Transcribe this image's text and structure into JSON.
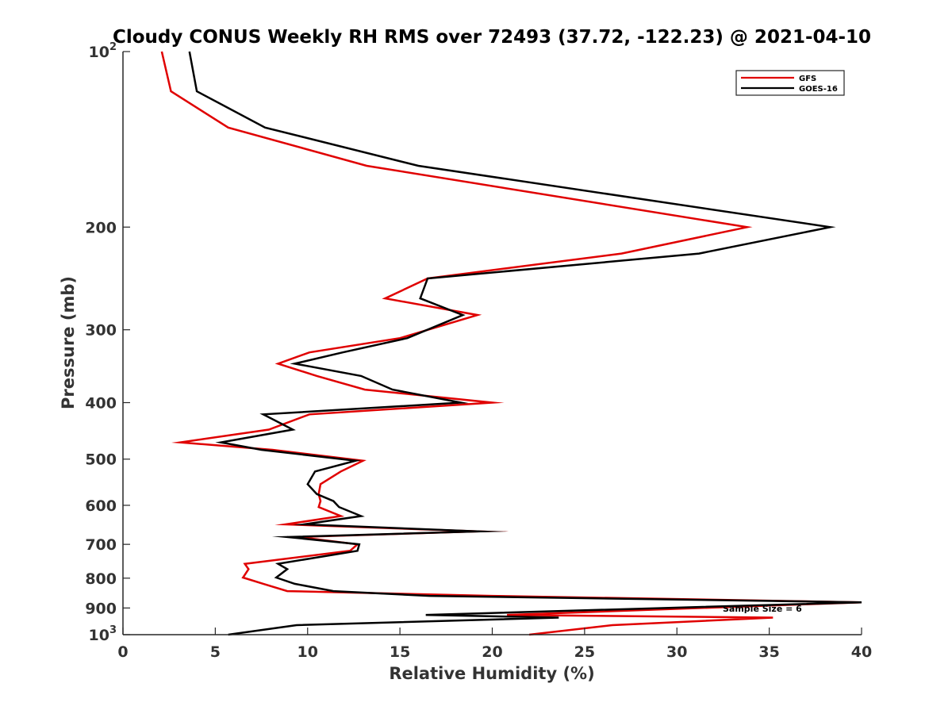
{
  "chart_data": {
    "type": "line",
    "title": "Cloudy CONUS Weekly RH RMS over 72493 (37.72, -122.23) @ 2021-04-10",
    "xlabel": "Relative Humidity (%)",
    "ylabel": "Pressure (mb)",
    "xlim": [
      0,
      40
    ],
    "ylim": [
      100,
      1000
    ],
    "y_scale": "log",
    "y_reversed": true,
    "x_ticks": [
      0,
      5,
      10,
      15,
      20,
      25,
      30,
      35,
      40
    ],
    "y_ticks": [
      {
        "value": 100,
        "label": "10",
        "sup": "2"
      },
      {
        "value": 200,
        "label": "200",
        "sup": ""
      },
      {
        "value": 300,
        "label": "300",
        "sup": ""
      },
      {
        "value": 400,
        "label": "400",
        "sup": ""
      },
      {
        "value": 500,
        "label": "500",
        "sup": ""
      },
      {
        "value": 600,
        "label": "600",
        "sup": ""
      },
      {
        "value": 700,
        "label": "700",
        "sup": ""
      },
      {
        "value": 800,
        "label": "800",
        "sup": ""
      },
      {
        "value": 900,
        "label": "900",
        "sup": ""
      },
      {
        "value": 1000,
        "label": "10",
        "sup": "3"
      }
    ],
    "grid": false,
    "legend_position": "top-right",
    "annotation": "Sample Size = 6",
    "series": [
      {
        "name": "GFS",
        "color": "#e00000",
        "points": [
          [
            2.1,
            100
          ],
          [
            2.6,
            117
          ],
          [
            5.7,
            135
          ],
          [
            13.2,
            157
          ],
          [
            33.8,
            200
          ],
          [
            27.0,
            222
          ],
          [
            16.5,
            245
          ],
          [
            14.2,
            265
          ],
          [
            19.2,
            283
          ],
          [
            15.0,
            310
          ],
          [
            10.1,
            328
          ],
          [
            8.4,
            343
          ],
          [
            10.5,
            360
          ],
          [
            13.1,
            380
          ],
          [
            20.0,
            400
          ],
          [
            10.1,
            419
          ],
          [
            7.9,
            445
          ],
          [
            3.1,
            468
          ],
          [
            8.1,
            482
          ],
          [
            13.0,
            503
          ],
          [
            11.8,
            525
          ],
          [
            10.7,
            552
          ],
          [
            10.6,
            574
          ],
          [
            10.7,
            590
          ],
          [
            10.6,
            604
          ],
          [
            11.8,
            626
          ],
          [
            8.8,
            647
          ],
          [
            19.3,
            665
          ],
          [
            9.5,
            680
          ],
          [
            12.7,
            700
          ],
          [
            12.3,
            718
          ],
          [
            6.6,
            756
          ],
          [
            6.8,
            772
          ],
          [
            6.5,
            798
          ],
          [
            7.6,
            818
          ],
          [
            8.9,
            842
          ],
          [
            20.0,
            858
          ],
          [
            40.0,
            880
          ],
          [
            20.8,
            925
          ],
          [
            35.2,
            935
          ],
          [
            26.5,
            963
          ],
          [
            22.0,
            1000
          ]
        ]
      },
      {
        "name": "GOES-16",
        "color": "#000000",
        "points": [
          [
            3.6,
            100
          ],
          [
            4.0,
            117
          ],
          [
            7.7,
            135
          ],
          [
            16.0,
            157
          ],
          [
            38.3,
            200
          ],
          [
            31.2,
            222
          ],
          [
            16.5,
            245
          ],
          [
            16.1,
            265
          ],
          [
            18.4,
            283
          ],
          [
            15.4,
            310
          ],
          [
            11.9,
            328
          ],
          [
            9.3,
            343
          ],
          [
            12.9,
            360
          ],
          [
            14.6,
            380
          ],
          [
            18.3,
            400
          ],
          [
            7.6,
            419
          ],
          [
            9.2,
            445
          ],
          [
            5.3,
            468
          ],
          [
            7.5,
            482
          ],
          [
            12.6,
            503
          ],
          [
            10.4,
            525
          ],
          [
            10.0,
            552
          ],
          [
            10.5,
            574
          ],
          [
            11.4,
            590
          ],
          [
            11.7,
            604
          ],
          [
            12.9,
            626
          ],
          [
            9.8,
            647
          ],
          [
            19.3,
            665
          ],
          [
            8.9,
            680
          ],
          [
            12.8,
            700
          ],
          [
            12.7,
            718
          ],
          [
            8.4,
            756
          ],
          [
            8.9,
            772
          ],
          [
            8.3,
            798
          ],
          [
            9.3,
            818
          ],
          [
            11.4,
            842
          ],
          [
            16.6,
            858
          ],
          [
            40.0,
            880
          ],
          [
            16.4,
            925
          ],
          [
            23.6,
            935
          ],
          [
            9.4,
            963
          ],
          [
            5.7,
            1000
          ]
        ]
      }
    ]
  }
}
